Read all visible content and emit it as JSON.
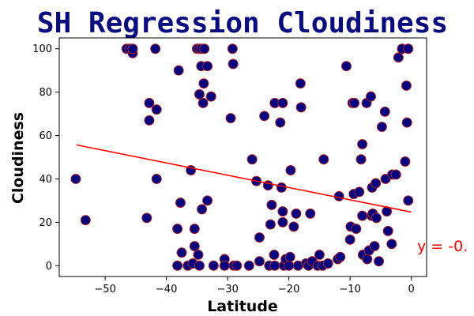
{
  "chart_data": {
    "type": "scatter",
    "title": "SH Regression Cloudiness",
    "xlabel": "Latitude",
    "ylabel": "Cloudiness",
    "xlim": [
      -57.5,
      2.5
    ],
    "ylim": [
      -5,
      105
    ],
    "xticks": [
      -50,
      -40,
      -30,
      -20,
      -10,
      0
    ],
    "yticks": [
      0,
      20,
      40,
      60,
      80,
      100
    ],
    "marker_fill": "#000080",
    "marker_edge": "#b22222",
    "regression_color": "#ff0000",
    "regression_line": {
      "x": [
        -54.7,
        0
      ],
      "y": [
        55.7,
        24.7
      ]
    },
    "annotation": "y = -0.",
    "points": [
      [
        -54.8,
        40
      ],
      [
        -53.2,
        21
      ],
      [
        -46.5,
        100
      ],
      [
        -46,
        100
      ],
      [
        -45.5,
        98
      ],
      [
        -45.5,
        100
      ],
      [
        -43.2,
        22
      ],
      [
        -42.8,
        67
      ],
      [
        -42.8,
        75
      ],
      [
        -41.8,
        100
      ],
      [
        -41.6,
        72
      ],
      [
        -41.6,
        40
      ],
      [
        -38.2,
        17
      ],
      [
        -38,
        90
      ],
      [
        -37.7,
        29
      ],
      [
        -37.5,
        6
      ],
      [
        -38.2,
        0
      ],
      [
        -36.5,
        0
      ],
      [
        -36,
        44
      ],
      [
        -35.7,
        1
      ],
      [
        -35.4,
        9
      ],
      [
        -35.4,
        17
      ],
      [
        -35,
        100
      ],
      [
        -34.7,
        100
      ],
      [
        -34.6,
        79
      ],
      [
        -34.3,
        100
      ],
      [
        -34.3,
        92
      ],
      [
        -34.2,
        26
      ],
      [
        -34,
        75
      ],
      [
        -33.9,
        84
      ],
      [
        -33.8,
        100
      ],
      [
        -34.8,
        5
      ],
      [
        -34.6,
        0
      ],
      [
        -33.3,
        92
      ],
      [
        -33.3,
        30
      ],
      [
        -32.7,
        78
      ],
      [
        -32.3,
        0
      ],
      [
        -30.5,
        3
      ],
      [
        -30.5,
        0
      ],
      [
        -29.5,
        68
      ],
      [
        -29.2,
        100
      ],
      [
        -29.1,
        93
      ],
      [
        -29,
        0
      ],
      [
        -28.5,
        0
      ],
      [
        -26.5,
        0
      ],
      [
        -26,
        49
      ],
      [
        -25.3,
        39
      ],
      [
        -24.8,
        2
      ],
      [
        -24.8,
        13
      ],
      [
        -24,
        69
      ],
      [
        -23.4,
        37
      ],
      [
        -23.2,
        0
      ],
      [
        -23,
        19
      ],
      [
        -22.8,
        28
      ],
      [
        -22.4,
        5
      ],
      [
        -22.3,
        0
      ],
      [
        -22.3,
        75
      ],
      [
        -21.4,
        66
      ],
      [
        -21.2,
        36
      ],
      [
        -21,
        25
      ],
      [
        -21,
        20
      ],
      [
        -21,
        75
      ],
      [
        -20.8,
        0
      ],
      [
        -20.5,
        3
      ],
      [
        -20,
        0
      ],
      [
        -19.8,
        4
      ],
      [
        -19.7,
        44
      ],
      [
        -19.2,
        18
      ],
      [
        -18.8,
        24
      ],
      [
        -18.5,
        0
      ],
      [
        -18.1,
        84
      ],
      [
        -18,
        73
      ],
      [
        -17.2,
        1
      ],
      [
        -16.8,
        0
      ],
      [
        -16.5,
        24
      ],
      [
        -16.2,
        2
      ],
      [
        -15.3,
        0
      ],
      [
        -15,
        5
      ],
      [
        -14.5,
        0
      ],
      [
        -14.3,
        49
      ],
      [
        -13.6,
        1
      ],
      [
        -12,
        3
      ],
      [
        -11.6,
        4
      ],
      [
        -11.8,
        32
      ],
      [
        -10.6,
        92
      ],
      [
        -10,
        12
      ],
      [
        -9.9,
        18
      ],
      [
        -9.6,
        75
      ],
      [
        -9.4,
        33
      ],
      [
        -9.3,
        75
      ],
      [
        -9,
        17
      ],
      [
        -8.5,
        34
      ],
      [
        -8.2,
        49
      ],
      [
        -8,
        56
      ],
      [
        -8,
        23
      ],
      [
        -7.9,
        5
      ],
      [
        -7.3,
        75
      ],
      [
        -7.2,
        3
      ],
      [
        -6.9,
        7
      ],
      [
        -6.6,
        78
      ],
      [
        -6.5,
        23
      ],
      [
        -6.4,
        36
      ],
      [
        -6.3,
        24
      ],
      [
        -6,
        9
      ],
      [
        -5.8,
        38
      ],
      [
        -5.7,
        22
      ],
      [
        -5.3,
        2
      ],
      [
        -4.8,
        64
      ],
      [
        -4.3,
        71
      ],
      [
        -4.2,
        40
      ],
      [
        -4,
        25
      ],
      [
        -3.8,
        16
      ],
      [
        -3.2,
        10
      ],
      [
        -3.1,
        42
      ],
      [
        -2.5,
        42
      ],
      [
        -2.1,
        96
      ],
      [
        -1.5,
        100
      ],
      [
        -1,
        48
      ],
      [
        -0.8,
        83
      ],
      [
        -0.7,
        66
      ],
      [
        -0.5,
        30
      ],
      [
        -0.5,
        100
      ]
    ]
  }
}
